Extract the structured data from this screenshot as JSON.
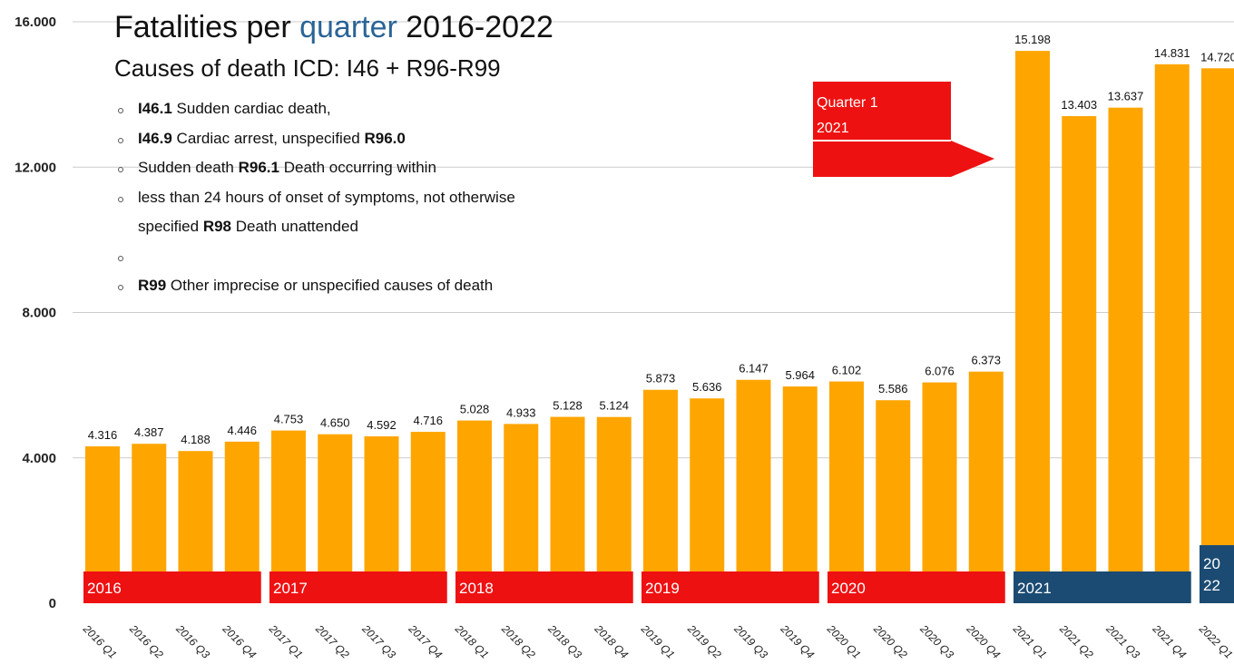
{
  "title": {
    "prefix": "Fatalities per ",
    "accent": "quarter",
    "suffix": " 2016-2022"
  },
  "subtitle": "Causes of death ICD: I46 + R96-R99",
  "legend_items": [
    [
      {
        "b": "I46.1"
      },
      {
        "t": " Sudden cardiac death,"
      }
    ],
    [
      {
        "b": "I46.9"
      },
      {
        "t": " Cardiac arrest, unspecified "
      },
      {
        "b": "R96.0"
      }
    ],
    [
      {
        "t": "Sudden death "
      },
      {
        "b": "R96.1"
      },
      {
        "t": " Death occurring within"
      }
    ],
    [
      {
        "t": "less than 24 hours of onset of symptoms, not otherwise"
      }
    ],
    [
      {
        "t": "specified "
      },
      {
        "b": "R98"
      },
      {
        "t": " Death unattended"
      }
    ],
    [],
    [
      {
        "b": "R99"
      },
      {
        "t": " Other imprecise or unspecified causes of death"
      }
    ]
  ],
  "legend_bullets": [
    true,
    true,
    true,
    true,
    false,
    true,
    true
  ],
  "callout": {
    "text": "Quarter 1\n2021"
  },
  "colors": {
    "bar": "#FFA500",
    "year_red": "#EE1111",
    "year_blue": "#1B4B72",
    "grid": "#cccccc"
  },
  "chart_data": {
    "type": "bar",
    "categories": [
      "2016 Q1",
      "2016 Q2",
      "2016 Q3",
      "2016 Q4",
      "2017 Q1",
      "2017 Q2",
      "2017 Q3",
      "2017 Q4",
      "2018 Q1",
      "2018 Q2",
      "2018 Q3",
      "2018 Q4",
      "2019 Q1",
      "2019 Q2",
      "2019 Q3",
      "2019 Q4",
      "2020 Q1",
      "2020 Q2",
      "2020 Q3",
      "2020 Q4",
      "2021 Q1",
      "2021 Q2",
      "2021 Q3",
      "2021 Q4",
      "2022 Q1"
    ],
    "values": [
      4316,
      4387,
      4188,
      4446,
      4753,
      4650,
      4592,
      4716,
      5028,
      4933,
      5128,
      5124,
      5873,
      5636,
      6147,
      5964,
      6102,
      5586,
      6076,
      6373,
      15198,
      13403,
      13637,
      14831,
      14720
    ],
    "value_labels": [
      "4.316",
      "4.387",
      "4.188",
      "4.446",
      "4.753",
      "4.650",
      "4.592",
      "4.716",
      "5.028",
      "4.933",
      "5.128",
      "5.124",
      "5.873",
      "5.636",
      "6.147",
      "5.964",
      "6.102",
      "5.586",
      "6.076",
      "6.373",
      "15.198",
      "13.403",
      "13.637",
      "14.831",
      "14.720"
    ],
    "ylim": [
      0,
      16000
    ],
    "y_ticks": [
      0,
      4000,
      8000,
      12000,
      16000
    ],
    "y_tick_labels": [
      "0",
      "4.000",
      "8.000",
      "12.000",
      "16.000"
    ],
    "year_bands": [
      {
        "label": "2016",
        "first": 0,
        "last": 3,
        "color": "red"
      },
      {
        "label": "2017",
        "first": 4,
        "last": 7,
        "color": "red"
      },
      {
        "label": "2018",
        "first": 8,
        "last": 11,
        "color": "red"
      },
      {
        "label": "2019",
        "first": 12,
        "last": 15,
        "color": "red"
      },
      {
        "label": "2020",
        "first": 16,
        "last": 19,
        "color": "red"
      },
      {
        "label": "2021",
        "first": 20,
        "last": 23,
        "color": "blue"
      },
      {
        "label": "20\n22",
        "first": 24,
        "last": 24,
        "color": "blue"
      }
    ],
    "grid": true
  }
}
